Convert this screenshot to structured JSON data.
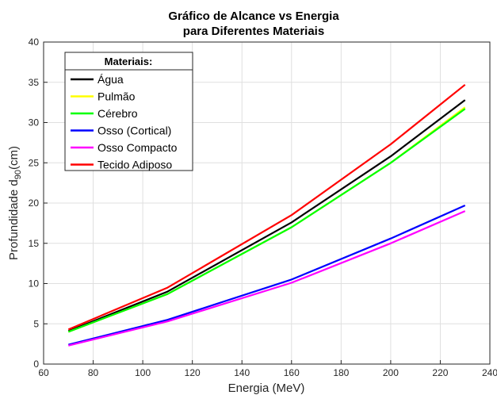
{
  "chart_data": {
    "type": "line",
    "title": [
      "Gráfico de Alcance vs Energia",
      "para Diferentes Materiais"
    ],
    "xlabel": "Energia (MeV)",
    "ylabel_main": "Profundidade d",
    "ylabel_sub": "90",
    "ylabel_suffix": "(cm)",
    "xlim": [
      60,
      240
    ],
    "ylim": [
      0,
      40
    ],
    "xticks": [
      60,
      80,
      100,
      120,
      140,
      160,
      180,
      200,
      220,
      240
    ],
    "yticks": [
      0,
      5,
      10,
      15,
      20,
      25,
      30,
      35,
      40
    ],
    "grid": true,
    "legend_title": "Materiais:",
    "legend_position": "top-left",
    "x": [
      70,
      110,
      160,
      200,
      230
    ],
    "series": [
      {
        "name": "Água",
        "color": "#000000",
        "values": [
          4.1,
          9.0,
          17.6,
          25.8,
          32.8
        ]
      },
      {
        "name": "Pulmão",
        "color": "#ffff00",
        "values": [
          4.0,
          8.7,
          17.0,
          25.0,
          31.9
        ]
      },
      {
        "name": "Cérebro",
        "color": "#00ff00",
        "values": [
          4.0,
          8.7,
          17.0,
          25.0,
          31.7
        ]
      },
      {
        "name": "Osso (Cortical)",
        "color": "#0000ff",
        "values": [
          2.4,
          5.5,
          10.5,
          15.6,
          19.7
        ]
      },
      {
        "name": "Osso Compacto",
        "color": "#ff00ff",
        "values": [
          2.3,
          5.3,
          10.1,
          15.0,
          19.0
        ]
      },
      {
        "name": "Tecido Adiposo",
        "color": "#ff0000",
        "values": [
          4.3,
          9.5,
          18.5,
          27.3,
          34.7
        ]
      }
    ]
  }
}
